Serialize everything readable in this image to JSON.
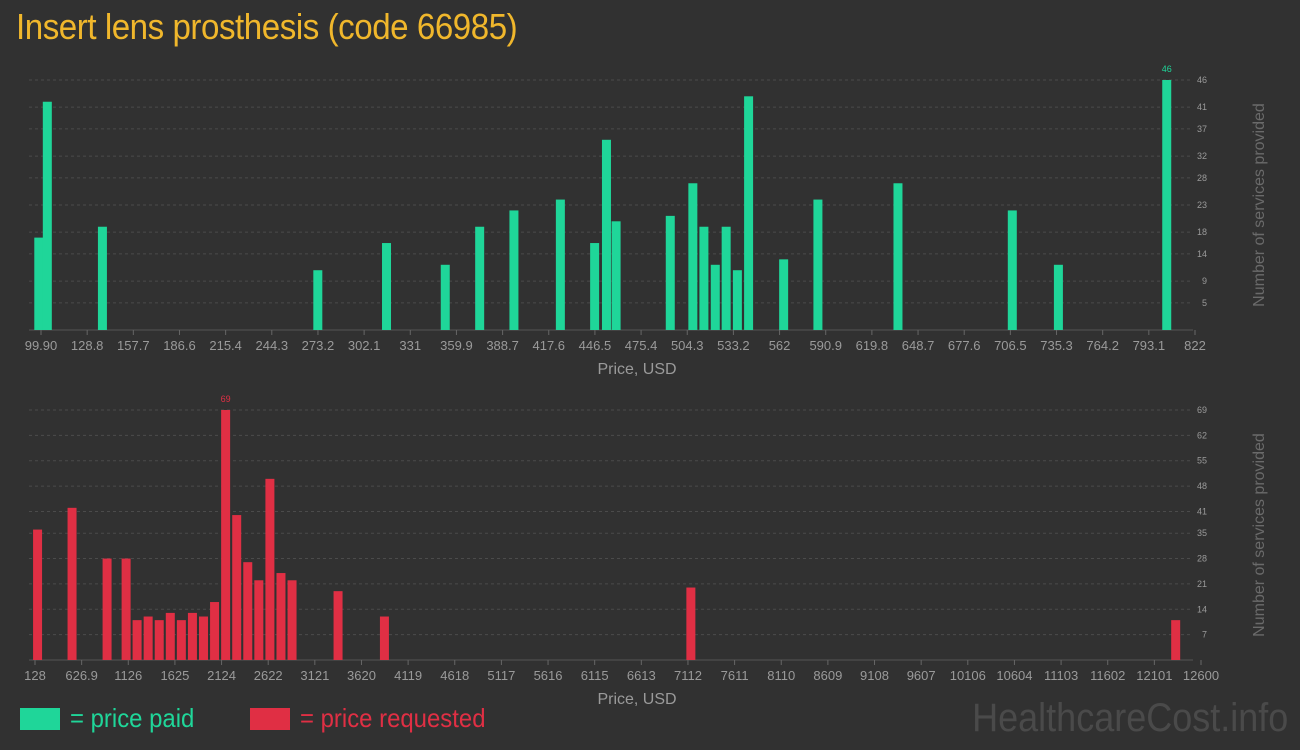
{
  "title": "Insert lens prosthesis (code 66985)",
  "legend": {
    "paid_label": "= price paid",
    "requested_label": "= price requested"
  },
  "watermark": "HealthcareCost.info",
  "colors": {
    "paid": "#1fd699",
    "requested": "#e02f44",
    "title": "#f0b72c",
    "background": "#313131",
    "axis_text": "#9a9a9a"
  },
  "chart_data": [
    {
      "type": "bar",
      "name": "price paid",
      "xlabel": "Price, USD",
      "ylabel": "Number of services provided",
      "xlim": [
        96,
        823
      ],
      "ylim": [
        0,
        46
      ],
      "x_ticks": [
        "99.90",
        "128.8",
        "157.7",
        "186.6",
        "215.4",
        "244.3",
        "273.2",
        "302.1",
        "331",
        "359.9",
        "388.7",
        "417.6",
        "446.5",
        "475.4",
        "504.3",
        "533.2",
        "562",
        "590.9",
        "619.8",
        "648.7",
        "677.6",
        "706.5",
        "735.3",
        "764.2",
        "793.1",
        "822"
      ],
      "y_ticks": [
        "5",
        "9",
        "14",
        "18",
        "23",
        "28",
        "32",
        "37",
        "41",
        "46"
      ],
      "max_label": "46",
      "bars": [
        {
          "x": 98.4,
          "y": 17
        },
        {
          "x": 103.8,
          "y": 42
        },
        {
          "x": 138.7,
          "y": 19
        },
        {
          "x": 275.1,
          "y": 11
        },
        {
          "x": 318.6,
          "y": 16
        },
        {
          "x": 355.8,
          "y": 12
        },
        {
          "x": 377.6,
          "y": 19
        },
        {
          "x": 399.3,
          "y": 22
        },
        {
          "x": 428.7,
          "y": 24
        },
        {
          "x": 450.4,
          "y": 16
        },
        {
          "x": 457.9,
          "y": 35
        },
        {
          "x": 464.0,
          "y": 20
        },
        {
          "x": 498.3,
          "y": 21
        },
        {
          "x": 512.6,
          "y": 27
        },
        {
          "x": 519.6,
          "y": 19
        },
        {
          "x": 526.8,
          "y": 12
        },
        {
          "x": 533.7,
          "y": 19
        },
        {
          "x": 540.8,
          "y": 11
        },
        {
          "x": 547.9,
          "y": 43
        },
        {
          "x": 570.1,
          "y": 13
        },
        {
          "x": 591.8,
          "y": 24
        },
        {
          "x": 642.5,
          "y": 27
        },
        {
          "x": 714.9,
          "y": 22
        },
        {
          "x": 744.1,
          "y": 12
        },
        {
          "x": 812.7,
          "y": 46
        }
      ]
    },
    {
      "type": "bar",
      "name": "price requested",
      "xlabel": "Price, USD",
      "ylabel": "Number of services provided",
      "xlim": [
        100,
        12650
      ],
      "ylim": [
        0,
        69
      ],
      "x_ticks": [
        "128",
        "626.9",
        "1126",
        "1625",
        "2124",
        "2622",
        "3121",
        "3620",
        "4119",
        "4618",
        "5117",
        "5616",
        "6115",
        "6613",
        "7112",
        "7611",
        "8110",
        "8609",
        "9108",
        "9607",
        "10106",
        "10604",
        "11103",
        "11602",
        "12101",
        "12600"
      ],
      "y_ticks": [
        "7",
        "14",
        "21",
        "28",
        "35",
        "41",
        "48",
        "55",
        "62",
        "69"
      ],
      "max_label": "69",
      "bars": [
        {
          "x": 128,
          "y": 36
        },
        {
          "x": 505,
          "y": 42
        },
        {
          "x": 888,
          "y": 28
        },
        {
          "x": 1096,
          "y": 28
        },
        {
          "x": 1216,
          "y": 11
        },
        {
          "x": 1337,
          "y": 12
        },
        {
          "x": 1458,
          "y": 11
        },
        {
          "x": 1579,
          "y": 13
        },
        {
          "x": 1700,
          "y": 11
        },
        {
          "x": 1821,
          "y": 13
        },
        {
          "x": 1942,
          "y": 12
        },
        {
          "x": 2063,
          "y": 16
        },
        {
          "x": 2184,
          "y": 69
        },
        {
          "x": 2305,
          "y": 40
        },
        {
          "x": 2426,
          "y": 27
        },
        {
          "x": 2547,
          "y": 22
        },
        {
          "x": 2668,
          "y": 50
        },
        {
          "x": 2789,
          "y": 24
        },
        {
          "x": 2910,
          "y": 22
        },
        {
          "x": 3413,
          "y": 19
        },
        {
          "x": 3920,
          "y": 12
        },
        {
          "x": 7270,
          "y": 20
        },
        {
          "x": 12570,
          "y": 11
        }
      ]
    }
  ]
}
